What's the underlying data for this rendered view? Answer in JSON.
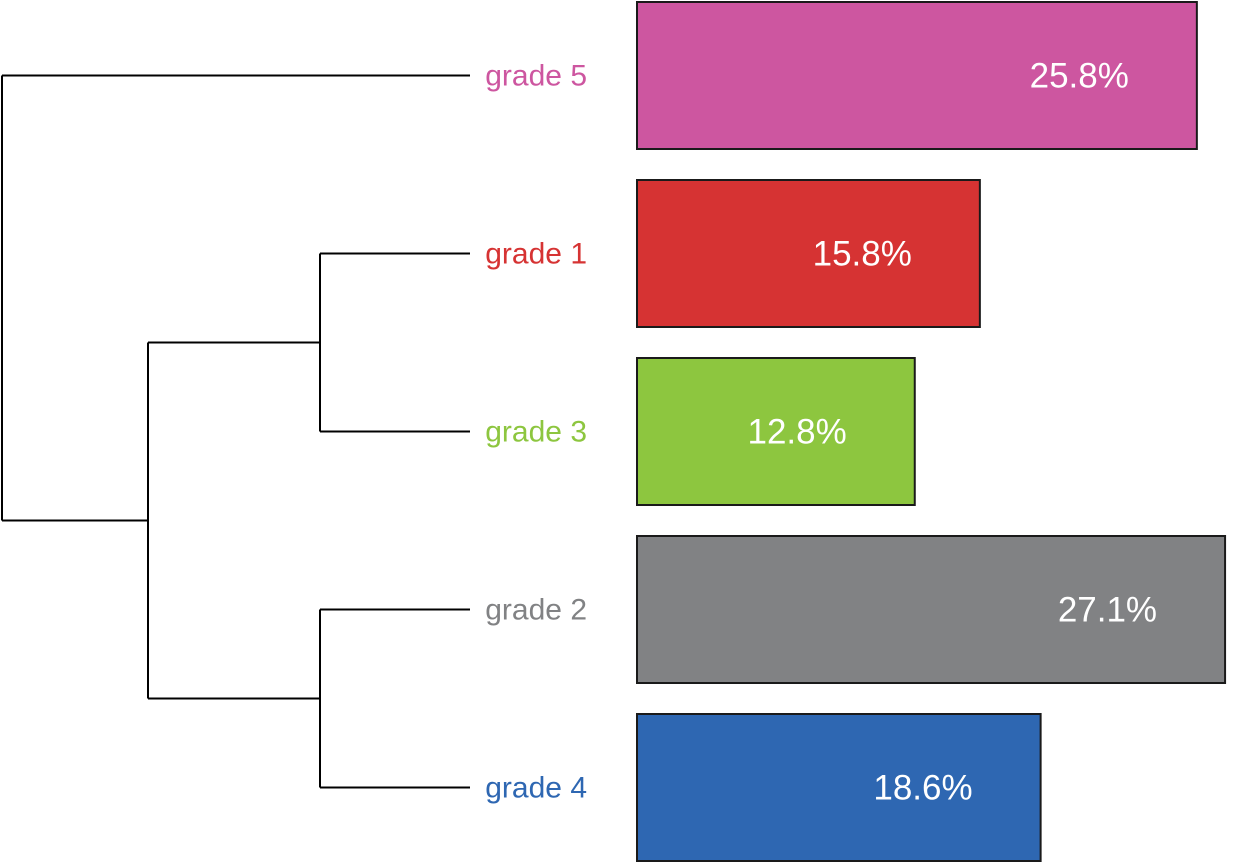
{
  "chart_data": {
    "type": "bar",
    "orientation": "horizontal",
    "categories": [
      "grade 5",
      "grade 1",
      "grade 3",
      "grade 2",
      "grade 4"
    ],
    "values": [
      25.8,
      15.8,
      12.8,
      27.1,
      18.6
    ],
    "value_labels": [
      "25.8%",
      "15.8%",
      "12.8%",
      "27.1%",
      "18.6%"
    ],
    "colors": [
      "#cd56a0",
      "#d63333",
      "#8dc63f",
      "#818284",
      "#2e67b2"
    ],
    "dendrogram": "((grade 1, grade 3), (grade 2, grade 4)), grade 5",
    "grid": false,
    "legend": "none"
  }
}
